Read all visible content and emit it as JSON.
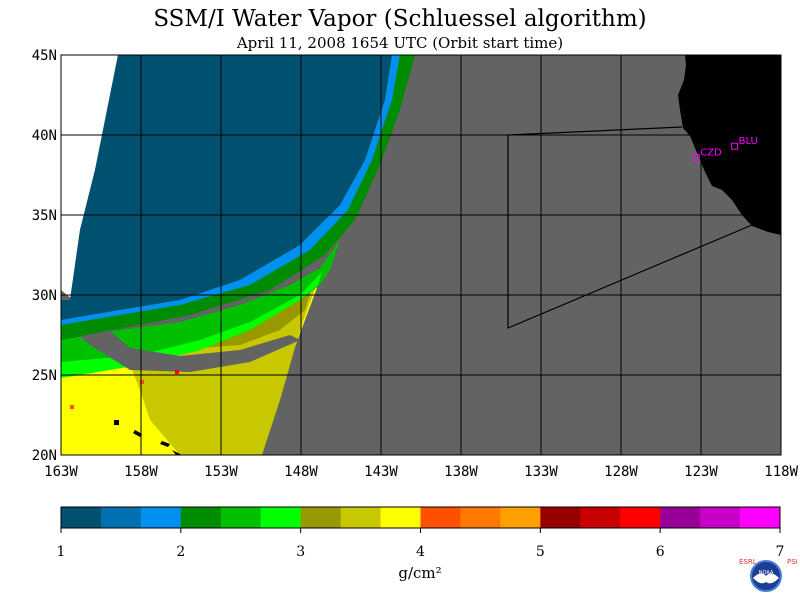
{
  "title": "SSM/I Water Vapor (Schluessel algorithm)",
  "subtitle": "April 11, 2008  1654 UTC  (Orbit start time)",
  "map": {
    "lat_labels": [
      "45N",
      "40N",
      "35N",
      "30N",
      "25N",
      "20N"
    ],
    "lon_labels": [
      "163W",
      "158W",
      "153W",
      "148W",
      "143W",
      "138W",
      "133W",
      "128W",
      "123W",
      "118W"
    ],
    "stations": [
      {
        "code": "CZD",
        "lon": -123.3,
        "lat": 38.6
      },
      {
        "code": "BLU",
        "lon": -120.9,
        "lat": 39.3
      }
    ],
    "colors": {
      "no_data": "#636363",
      "land": "#000000",
      "grid": "#000000",
      "station": "#ff00ff"
    }
  },
  "colorbar": {
    "colors": [
      "#005070",
      "#0070b0",
      "#0090f0",
      "#008c00",
      "#00c000",
      "#00ff00",
      "#989800",
      "#c8c800",
      "#ffff00",
      "#ff5000",
      "#ff7800",
      "#ffa000",
      "#980000",
      "#c80000",
      "#ff0000",
      "#980098",
      "#c800c8",
      "#ff00ff"
    ],
    "tick_labels": [
      "1",
      "2",
      "3",
      "4",
      "5",
      "6",
      "7"
    ],
    "units": "g/cm²"
  },
  "logo": {
    "left_text": "ESRL",
    "right_text": "PSD",
    "center_text": "NOAA"
  }
}
